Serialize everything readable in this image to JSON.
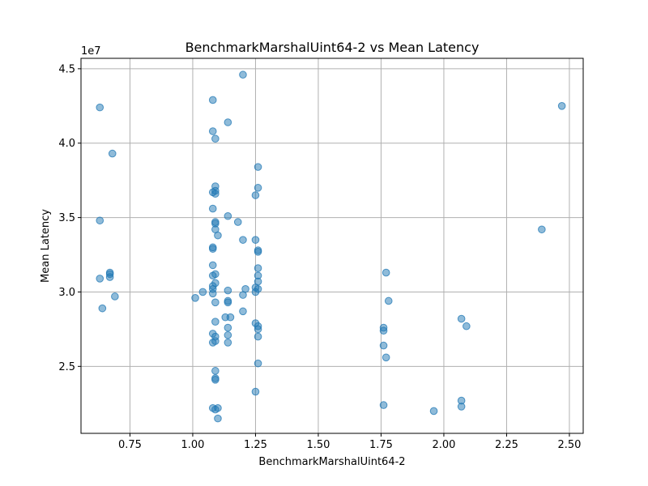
{
  "chart_data": {
    "type": "scatter",
    "title": "BenchmarkMarshalUint64-2 vs Mean Latency",
    "xlabel": "BenchmarkMarshalUint64-2",
    "ylabel": "Mean Latency",
    "xlim": [
      0.555,
      2.555
    ],
    "ylim": [
      20500000,
      45700000
    ],
    "x_ticks": [
      0.75,
      1.0,
      1.25,
      1.5,
      1.75,
      2.0,
      2.25,
      2.5
    ],
    "x_tick_labels": [
      "0.75",
      "1.00",
      "1.25",
      "1.50",
      "1.75",
      "2.00",
      "2.25",
      "2.50"
    ],
    "y_ticks": [
      25000000,
      30000000,
      35000000,
      40000000,
      45000000
    ],
    "y_tick_labels": [
      "2.5",
      "3.0",
      "3.5",
      "4.0",
      "4.5"
    ],
    "y_offset_label": "1e7",
    "grid": true,
    "marker_color": "#1f77b4",
    "marker_alpha": 0.5,
    "points": [
      [
        0.63,
        42400000
      ],
      [
        0.68,
        39300000
      ],
      [
        0.63,
        34800000
      ],
      [
        0.67,
        31300000
      ],
      [
        0.67,
        31000000
      ],
      [
        0.67,
        31200000
      ],
      [
        0.63,
        30900000
      ],
      [
        0.69,
        29700000
      ],
      [
        0.64,
        28900000
      ],
      [
        1.08,
        42900000
      ],
      [
        1.08,
        40800000
      ],
      [
        1.09,
        40300000
      ],
      [
        1.09,
        37100000
      ],
      [
        1.09,
        36800000
      ],
      [
        1.09,
        36600000
      ],
      [
        1.08,
        36700000
      ],
      [
        1.08,
        35600000
      ],
      [
        1.09,
        34700000
      ],
      [
        1.09,
        34600000
      ],
      [
        1.09,
        34200000
      ],
      [
        1.1,
        33800000
      ],
      [
        1.08,
        33000000
      ],
      [
        1.08,
        32900000
      ],
      [
        1.08,
        31800000
      ],
      [
        1.09,
        31200000
      ],
      [
        1.08,
        31100000
      ],
      [
        1.09,
        30600000
      ],
      [
        1.08,
        30400000
      ],
      [
        1.08,
        30200000
      ],
      [
        1.08,
        29900000
      ],
      [
        1.09,
        29300000
      ],
      [
        1.09,
        28000000
      ],
      [
        1.08,
        27200000
      ],
      [
        1.09,
        27000000
      ],
      [
        1.09,
        26700000
      ],
      [
        1.08,
        26600000
      ],
      [
        1.09,
        24700000
      ],
      [
        1.09,
        24200000
      ],
      [
        1.09,
        24100000
      ],
      [
        1.08,
        22200000
      ],
      [
        1.09,
        22100000
      ],
      [
        1.1,
        22200000
      ],
      [
        1.1,
        21500000
      ],
      [
        1.01,
        29600000
      ],
      [
        1.04,
        30000000
      ],
      [
        1.2,
        44600000
      ],
      [
        1.14,
        41400000
      ],
      [
        1.14,
        35100000
      ],
      [
        1.18,
        34700000
      ],
      [
        1.2,
        33500000
      ],
      [
        1.14,
        30100000
      ],
      [
        1.14,
        29400000
      ],
      [
        1.14,
        29300000
      ],
      [
        1.13,
        28300000
      ],
      [
        1.15,
        28300000
      ],
      [
        1.14,
        27600000
      ],
      [
        1.14,
        27100000
      ],
      [
        1.14,
        26600000
      ],
      [
        1.2,
        29800000
      ],
      [
        1.21,
        30200000
      ],
      [
        1.2,
        28700000
      ],
      [
        1.26,
        38400000
      ],
      [
        1.26,
        37000000
      ],
      [
        1.25,
        36500000
      ],
      [
        1.25,
        33500000
      ],
      [
        1.26,
        32800000
      ],
      [
        1.26,
        32700000
      ],
      [
        1.26,
        31600000
      ],
      [
        1.26,
        31100000
      ],
      [
        1.26,
        30700000
      ],
      [
        1.25,
        30300000
      ],
      [
        1.25,
        30000000
      ],
      [
        1.26,
        30200000
      ],
      [
        1.25,
        27900000
      ],
      [
        1.26,
        27700000
      ],
      [
        1.26,
        27500000
      ],
      [
        1.26,
        27000000
      ],
      [
        1.26,
        25200000
      ],
      [
        1.25,
        23300000
      ],
      [
        1.77,
        31300000
      ],
      [
        1.78,
        29400000
      ],
      [
        1.76,
        27600000
      ],
      [
        1.76,
        27400000
      ],
      [
        1.76,
        26400000
      ],
      [
        1.77,
        25600000
      ],
      [
        1.76,
        22400000
      ],
      [
        2.07,
        28200000
      ],
      [
        2.09,
        27700000
      ],
      [
        2.07,
        22700000
      ],
      [
        2.07,
        22300000
      ],
      [
        1.96,
        22000000
      ],
      [
        2.39,
        34200000
      ],
      [
        2.47,
        42500000
      ]
    ]
  }
}
